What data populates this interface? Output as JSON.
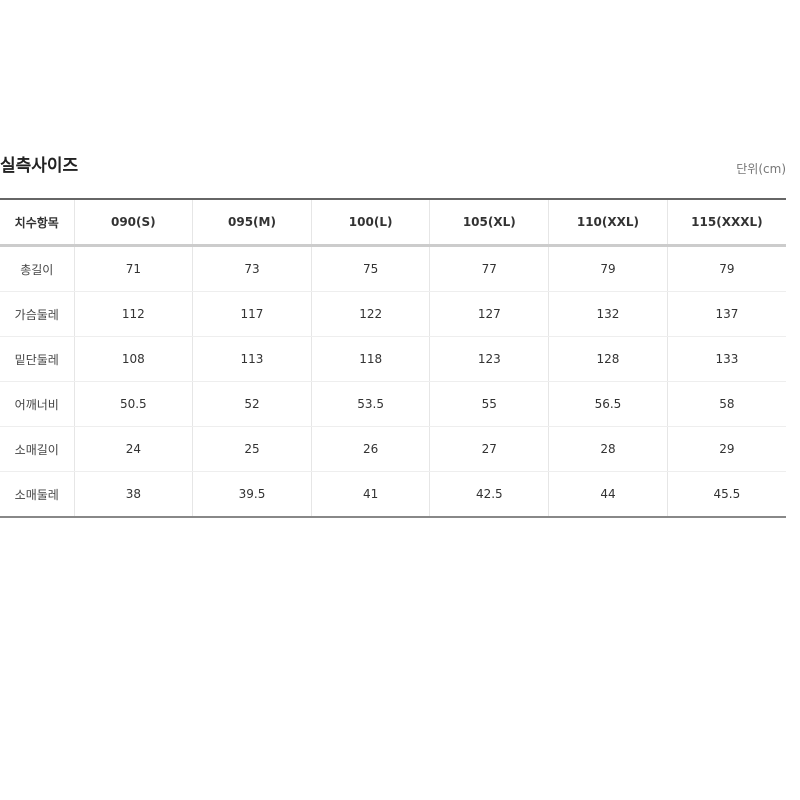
{
  "title": "실측사이즈",
  "unit": "단위(cm)",
  "table": {
    "headers": [
      "치수항목",
      "090(S)",
      "095(M)",
      "100(L)",
      "105(XL)",
      "110(XXL)",
      "115(XXXL)"
    ],
    "rows": [
      [
        "총길이",
        "71",
        "73",
        "75",
        "77",
        "79",
        "79"
      ],
      [
        "가슴둘레",
        "112",
        "117",
        "122",
        "127",
        "132",
        "137"
      ],
      [
        "밑단둘레",
        "108",
        "113",
        "118",
        "123",
        "128",
        "133"
      ],
      [
        "어깨너비",
        "50.5",
        "52",
        "53.5",
        "55",
        "56.5",
        "58"
      ],
      [
        "소매길이",
        "24",
        "25",
        "26",
        "27",
        "28",
        "29"
      ],
      [
        "소매둘레",
        "38",
        "39.5",
        "41",
        "42.5",
        "44",
        "45.5"
      ]
    ]
  }
}
